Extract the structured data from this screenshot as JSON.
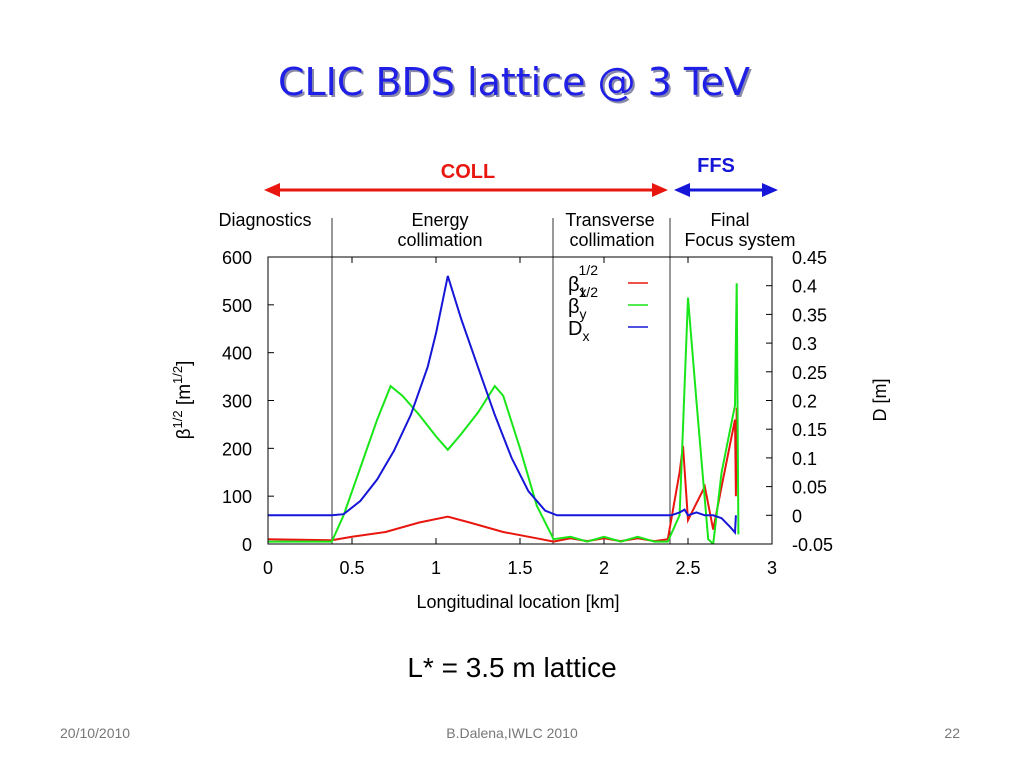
{
  "slide": {
    "title": "CLIC BDS lattice @ 3 TeV",
    "caption": "L* = 3.5 m lattice",
    "footer": {
      "date": "20/10/2010",
      "author": "B.Dalena,IWLC 2010",
      "page": "22"
    },
    "arrows": {
      "coll": "COLL",
      "ffs": "FFS"
    },
    "sections": [
      [
        "Diagnostics"
      ],
      [
        "Energy",
        "collimation"
      ],
      [
        "Transverse",
        "collimation"
      ],
      [
        "Final",
        "Focus system"
      ]
    ]
  },
  "chart_data": {
    "type": "line",
    "xlabel": "Longitudinal location [km]",
    "ylabel": [
      "β",
      "1/2",
      " [m",
      "1/2",
      "]"
    ],
    "y2label": "D [m]",
    "xlim": [
      0,
      3
    ],
    "xticks": [
      0,
      0.5,
      1,
      1.5,
      2,
      2.5,
      3
    ],
    "ylim": [
      0,
      600
    ],
    "yticks": [
      0,
      100,
      200,
      300,
      400,
      500,
      600
    ],
    "y2lim": [
      -0.05,
      0.45
    ],
    "y2ticks": [
      -0.05,
      0,
      0.05,
      0.1,
      0.15,
      0.2,
      0.25,
      0.3,
      0.35,
      0.4,
      0.45
    ],
    "series": [
      {
        "name": "β",
        "name_sub": "x",
        "name_sup": "1/2",
        "color": "#e8160f",
        "x": [
          0,
          0.38,
          0.5,
          0.7,
          0.9,
          1.07,
          1.2,
          1.4,
          1.6,
          1.7,
          1.8,
          1.9,
          2.0,
          2.1,
          2.2,
          2.3,
          2.38,
          2.45,
          2.47,
          2.5,
          2.6,
          2.65,
          2.7,
          2.78,
          2.785,
          2.79
        ],
        "values": [
          10,
          8,
          15,
          25,
          45,
          57,
          45,
          25,
          12,
          5,
          12,
          6,
          12,
          6,
          12,
          6,
          10,
          150,
          205,
          50,
          120,
          30,
          120,
          260,
          100,
          285
        ]
      },
      {
        "name": "β",
        "name_sub": "y",
        "name_sup": "1/2",
        "color": "#19e619",
        "x": [
          0,
          0.38,
          0.45,
          0.55,
          0.65,
          0.73,
          0.8,
          0.9,
          1.0,
          1.07,
          1.15,
          1.25,
          1.35,
          1.4,
          1.5,
          1.6,
          1.7,
          1.8,
          1.9,
          2.0,
          2.1,
          2.2,
          2.3,
          2.38,
          2.45,
          2.5,
          2.55,
          2.62,
          2.65,
          2.7,
          2.78,
          2.79,
          2.8
        ],
        "values": [
          5,
          5,
          60,
          160,
          260,
          330,
          310,
          270,
          225,
          197,
          230,
          275,
          330,
          310,
          200,
          80,
          10,
          15,
          5,
          15,
          5,
          15,
          5,
          5,
          60,
          515,
          300,
          10,
          0,
          150,
          290,
          545,
          20
        ]
      },
      {
        "name": "D",
        "name_sub": "x",
        "color": "#1616d8",
        "axis": "y2",
        "x": [
          0,
          0.38,
          0.45,
          0.55,
          0.65,
          0.75,
          0.85,
          0.95,
          1.0,
          1.07,
          1.15,
          1.25,
          1.35,
          1.45,
          1.55,
          1.65,
          1.72,
          2.0,
          2.4,
          2.45,
          2.48,
          2.5,
          2.55,
          2.6,
          2.65,
          2.7,
          2.75,
          2.78,
          2.785
        ],
        "values": [
          0,
          0,
          0.002,
          0.025,
          0.0625,
          0.1125,
          0.175,
          0.258,
          0.317,
          0.417,
          0.342,
          0.258,
          0.175,
          0.1,
          0.042,
          0.008,
          0,
          0,
          0,
          0.005,
          0.01,
          0,
          0.005,
          0,
          0,
          -0.005,
          -0.02,
          -0.03,
          0
        ]
      }
    ]
  }
}
